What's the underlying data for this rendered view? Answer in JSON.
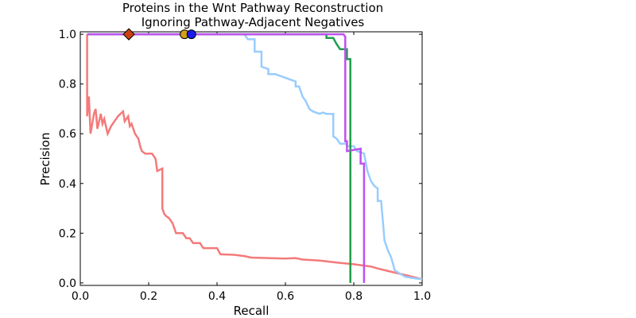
{
  "chart_data": {
    "type": "line",
    "title": "Proteins in the Wnt Pathway Reconstruction",
    "subtitle": "Ignoring Pathway-Adjacent Negatives",
    "xlabel": "Recall",
    "ylabel": "Precision",
    "xlim": [
      0.0,
      1.0
    ],
    "ylim": [
      0.0,
      1.0
    ],
    "xticks": [
      "0.0",
      "0.2",
      "0.4",
      "0.6",
      "0.8",
      "1.0"
    ],
    "yticks": [
      "0.0",
      "0.2",
      "0.4",
      "0.6",
      "0.8",
      "1.0"
    ],
    "grid": false,
    "legend": "none",
    "series": [
      {
        "color": "#f47a7a",
        "points": [
          [
            0.02,
            1.0
          ],
          [
            0.02,
            0.67
          ],
          [
            0.025,
            0.75
          ],
          [
            0.03,
            0.6
          ],
          [
            0.04,
            0.68
          ],
          [
            0.045,
            0.7
          ],
          [
            0.05,
            0.62
          ],
          [
            0.06,
            0.68
          ],
          [
            0.065,
            0.64
          ],
          [
            0.07,
            0.66
          ],
          [
            0.08,
            0.6
          ],
          [
            0.09,
            0.63
          ],
          [
            0.1,
            0.65
          ],
          [
            0.11,
            0.67
          ],
          [
            0.125,
            0.69
          ],
          [
            0.13,
            0.65
          ],
          [
            0.14,
            0.67
          ],
          [
            0.145,
            0.63
          ],
          [
            0.15,
            0.64
          ],
          [
            0.16,
            0.6
          ],
          [
            0.17,
            0.58
          ],
          [
            0.175,
            0.55
          ],
          [
            0.18,
            0.53
          ],
          [
            0.19,
            0.52
          ],
          [
            0.2,
            0.52
          ],
          [
            0.21,
            0.52
          ],
          [
            0.215,
            0.51
          ],
          [
            0.22,
            0.5
          ],
          [
            0.225,
            0.45
          ],
          [
            0.24,
            0.46
          ],
          [
            0.24,
            0.3
          ],
          [
            0.245,
            0.28
          ],
          [
            0.25,
            0.27
          ],
          [
            0.26,
            0.26
          ],
          [
            0.27,
            0.24
          ],
          [
            0.28,
            0.2
          ],
          [
            0.3,
            0.2
          ],
          [
            0.31,
            0.18
          ],
          [
            0.32,
            0.18
          ],
          [
            0.33,
            0.16
          ],
          [
            0.35,
            0.16
          ],
          [
            0.36,
            0.14
          ],
          [
            0.4,
            0.14
          ],
          [
            0.41,
            0.115
          ],
          [
            0.45,
            0.113
          ],
          [
            0.48,
            0.108
          ],
          [
            0.5,
            0.102
          ],
          [
            0.55,
            0.1
          ],
          [
            0.6,
            0.098
          ],
          [
            0.63,
            0.1
          ],
          [
            0.65,
            0.094
          ],
          [
            0.7,
            0.09
          ],
          [
            0.75,
            0.082
          ],
          [
            0.8,
            0.075
          ],
          [
            0.85,
            0.066
          ],
          [
            0.87,
            0.058
          ],
          [
            0.9,
            0.048
          ],
          [
            0.95,
            0.032
          ],
          [
            1.0,
            0.015
          ]
        ]
      },
      {
        "color": "#99ccff",
        "points": [
          [
            0.02,
            1.0
          ],
          [
            0.48,
            1.0
          ],
          [
            0.49,
            0.98
          ],
          [
            0.51,
            0.98
          ],
          [
            0.51,
            0.93
          ],
          [
            0.53,
            0.93
          ],
          [
            0.53,
            0.87
          ],
          [
            0.55,
            0.86
          ],
          [
            0.55,
            0.84
          ],
          [
            0.57,
            0.84
          ],
          [
            0.59,
            0.83
          ],
          [
            0.61,
            0.82
          ],
          [
            0.63,
            0.81
          ],
          [
            0.63,
            0.79
          ],
          [
            0.64,
            0.79
          ],
          [
            0.65,
            0.75
          ],
          [
            0.66,
            0.73
          ],
          [
            0.67,
            0.7
          ],
          [
            0.68,
            0.69
          ],
          [
            0.7,
            0.68
          ],
          [
            0.71,
            0.685
          ],
          [
            0.72,
            0.68
          ],
          [
            0.74,
            0.68
          ],
          [
            0.74,
            0.59
          ],
          [
            0.75,
            0.58
          ],
          [
            0.76,
            0.56
          ],
          [
            0.78,
            0.56
          ],
          [
            0.78,
            0.55
          ],
          [
            0.8,
            0.55
          ],
          [
            0.81,
            0.53
          ],
          [
            0.83,
            0.52
          ],
          [
            0.84,
            0.45
          ],
          [
            0.85,
            0.41
          ],
          [
            0.86,
            0.39
          ],
          [
            0.87,
            0.38
          ],
          [
            0.87,
            0.33
          ],
          [
            0.88,
            0.33
          ],
          [
            0.89,
            0.17
          ],
          [
            0.9,
            0.13
          ],
          [
            0.91,
            0.1
          ],
          [
            0.92,
            0.05
          ],
          [
            0.95,
            0.025
          ],
          [
            0.97,
            0.02
          ],
          [
            1.0,
            0.015
          ]
        ]
      },
      {
        "color": "#1f9e4b",
        "points": [
          [
            0.02,
            1.0
          ],
          [
            0.72,
            1.0
          ],
          [
            0.72,
            0.985
          ],
          [
            0.74,
            0.985
          ],
          [
            0.75,
            0.96
          ],
          [
            0.76,
            0.94
          ],
          [
            0.78,
            0.94
          ],
          [
            0.78,
            0.9
          ],
          [
            0.79,
            0.9
          ],
          [
            0.79,
            0.0
          ]
        ]
      },
      {
        "color": "#c050f0",
        "points": [
          [
            0.02,
            1.0
          ],
          [
            0.77,
            1.0
          ],
          [
            0.775,
            0.99
          ],
          [
            0.775,
            0.57
          ],
          [
            0.78,
            0.57
          ],
          [
            0.78,
            0.53
          ],
          [
            0.8,
            0.535
          ],
          [
            0.82,
            0.54
          ],
          [
            0.82,
            0.48
          ],
          [
            0.83,
            0.48
          ],
          [
            0.83,
            0.0
          ]
        ]
      }
    ],
    "markers": [
      {
        "shape": "diamond",
        "x": 0.142,
        "y": 1.0,
        "color": "#cc4010"
      },
      {
        "shape": "circle",
        "x": 0.305,
        "y": 1.0,
        "color": "#d4a017"
      },
      {
        "shape": "circle",
        "x": 0.325,
        "y": 1.0,
        "color": "#1a1aee"
      }
    ]
  }
}
